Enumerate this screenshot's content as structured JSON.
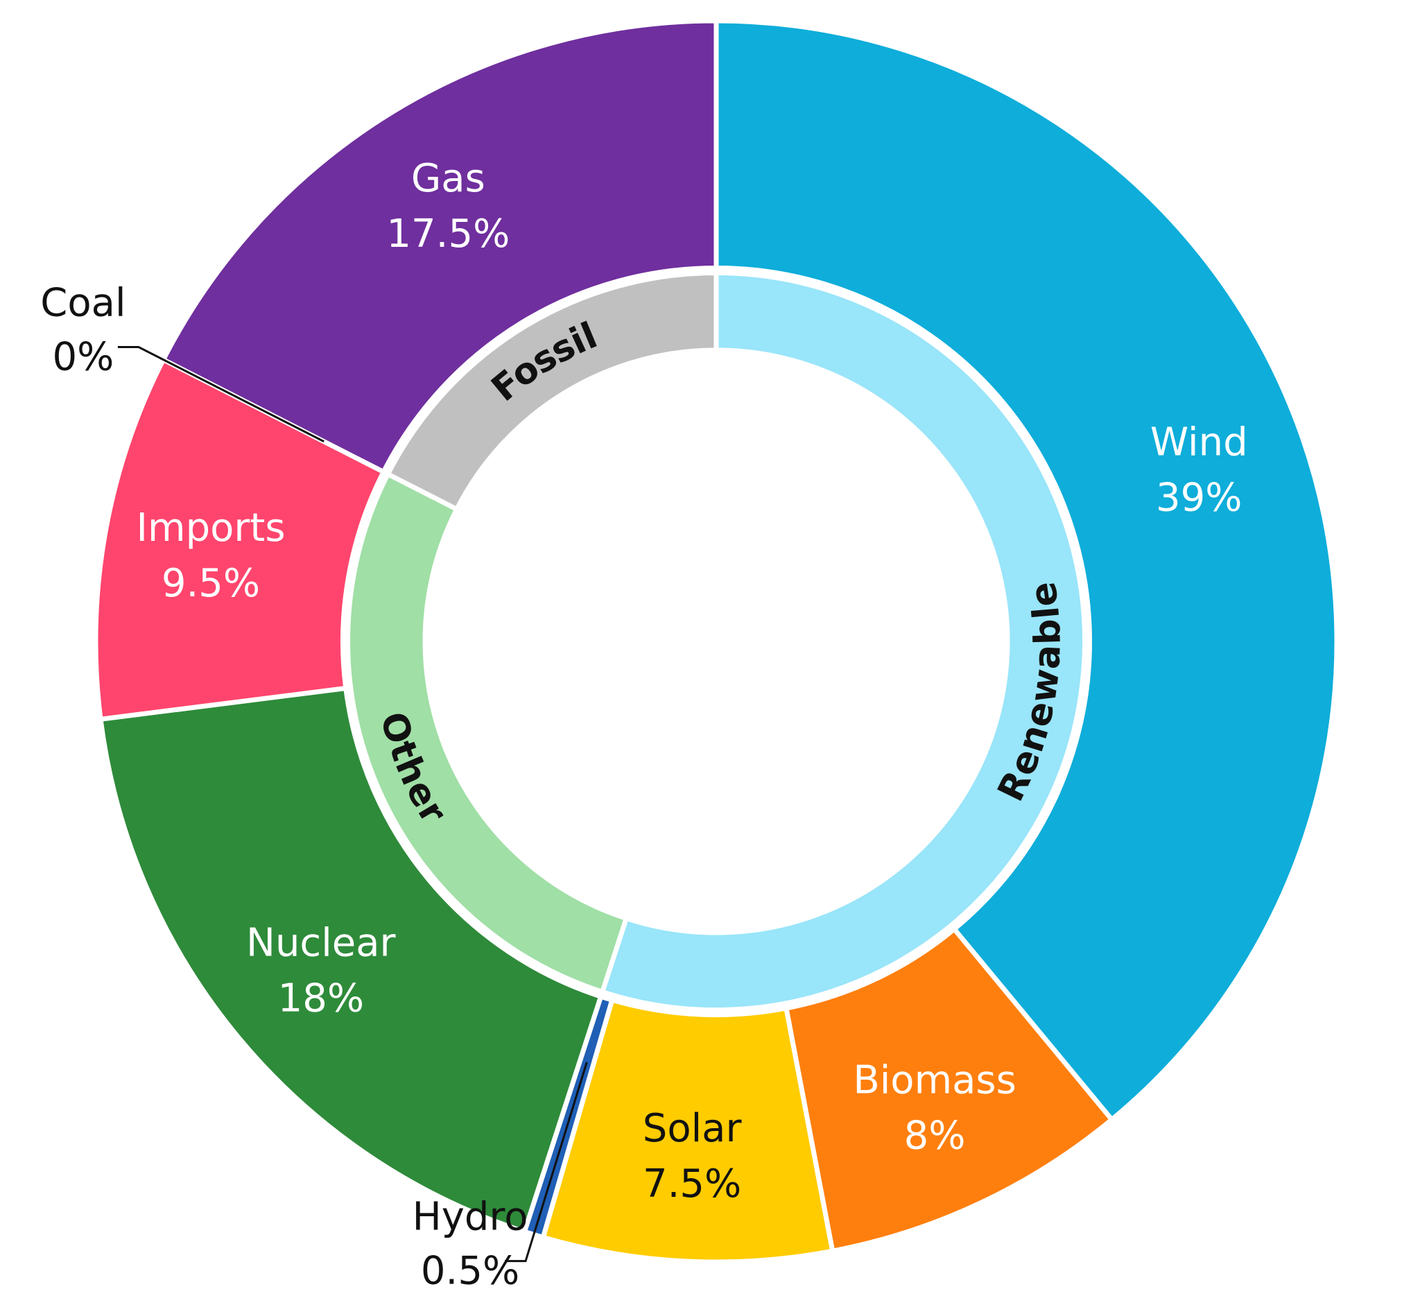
{
  "chart_data": {
    "type": "pie",
    "variant": "nested-donut",
    "outer": [
      {
        "name": "Wind",
        "value": 39,
        "label": "39%",
        "color": "#0EADDA",
        "text_color": "#ffffff"
      },
      {
        "name": "Biomass",
        "value": 8,
        "label": "8%",
        "color": "#FF7F0E",
        "text_color": "#ffffff"
      },
      {
        "name": "Solar",
        "value": 7.5,
        "label": "7.5%",
        "color": "#FFCC00",
        "text_color": "#111111"
      },
      {
        "name": "Hydro",
        "value": 0.5,
        "label": "0.5%",
        "color": "#1F5FB5",
        "text_color": "#111111"
      },
      {
        "name": "Nuclear",
        "value": 18,
        "label": "18%",
        "color": "#2E8B3A",
        "text_color": "#ffffff"
      },
      {
        "name": "Imports",
        "value": 9.5,
        "label": "9.5%",
        "color": "#FF456D",
        "text_color": "#ffffff"
      },
      {
        "name": "Coal",
        "value": 0,
        "label": "0%",
        "color": "#222222",
        "text_color": "#111111"
      },
      {
        "name": "Gas",
        "value": 17.5,
        "label": "17.5%",
        "color": "#6F2F9E",
        "text_color": "#ffffff"
      }
    ],
    "inner": [
      {
        "name": "Renewable",
        "value": 55,
        "color": "#99E5F9"
      },
      {
        "name": "Other",
        "value": 27.5,
        "color": "#A0DFA6"
      },
      {
        "name": "Fossil",
        "value": 17.5,
        "color": "#C0C0C0"
      }
    ]
  }
}
